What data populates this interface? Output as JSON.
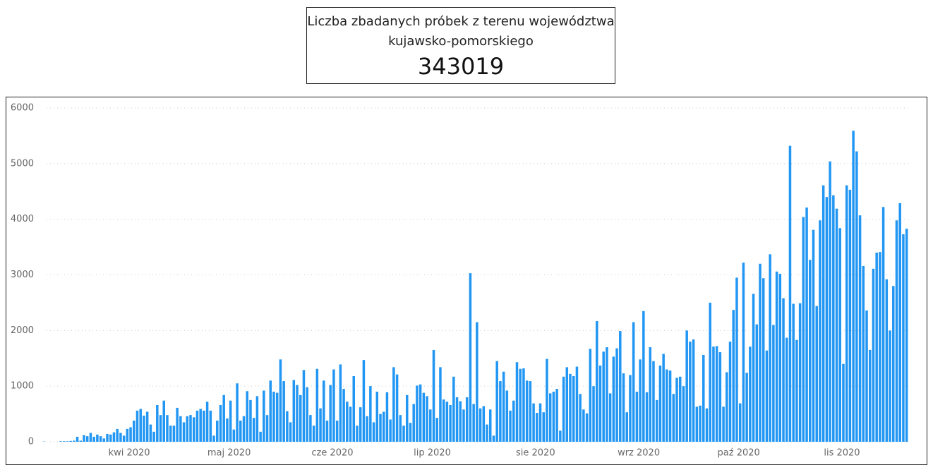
{
  "card": {
    "title": "Liczba zbadanych próbek z terenu województwa kujawsko-pomorskiego",
    "value": 343019
  },
  "chart_data": {
    "type": "bar",
    "color": "#2196f3",
    "grid": true,
    "ylim": [
      0,
      6000
    ],
    "yticks": [
      0,
      1000,
      2000,
      3000,
      4000,
      5000,
      6000
    ],
    "categories": [
      null,
      null,
      null,
      null,
      null,
      null,
      null,
      null,
      null,
      null,
      null,
      null,
      null,
      null,
      null,
      null,
      null,
      null,
      null,
      null,
      null,
      null,
      null,
      null,
      null,
      null,
      "kwi 2020",
      null,
      null,
      null,
      null,
      null,
      null,
      null,
      null,
      null,
      null,
      null,
      null,
      null,
      null,
      null,
      null,
      null,
      null,
      null,
      null,
      null,
      null,
      null,
      null,
      null,
      null,
      null,
      null,
      null,
      "maj 2020",
      null,
      null,
      null,
      null,
      null,
      null,
      null,
      null,
      null,
      null,
      null,
      null,
      null,
      null,
      null,
      null,
      null,
      null,
      null,
      null,
      null,
      null,
      null,
      null,
      null,
      null,
      null,
      null,
      null,
      null,
      "cze 2020",
      null,
      null,
      null,
      null,
      null,
      null,
      null,
      null,
      null,
      null,
      null,
      null,
      null,
      null,
      null,
      null,
      null,
      null,
      null,
      null,
      null,
      null,
      null,
      null,
      null,
      null,
      null,
      null,
      null,
      "lip 2020",
      null,
      null,
      null,
      null,
      null,
      null,
      null,
      null,
      null,
      null,
      null,
      null,
      null,
      null,
      null,
      null,
      null,
      null,
      null,
      null,
      null,
      null,
      null,
      null,
      null,
      null,
      null,
      null,
      null,
      null,
      "sie 2020",
      null,
      null,
      null,
      null,
      null,
      null,
      null,
      null,
      null,
      null,
      null,
      null,
      null,
      null,
      null,
      null,
      null,
      null,
      null,
      null,
      null,
      null,
      null,
      null,
      null,
      null,
      null,
      null,
      null,
      null,
      "wrz 2020",
      null,
      null,
      null,
      null,
      null,
      null,
      null,
      null,
      null,
      null,
      null,
      null,
      null,
      null,
      null,
      null,
      null,
      null,
      null,
      null,
      null,
      null,
      null,
      null,
      null,
      null,
      null,
      null,
      null,
      "paź 2020",
      null,
      null,
      null,
      null,
      null,
      null,
      null,
      null,
      null,
      null,
      null,
      null,
      null,
      null,
      null,
      null,
      null,
      null,
      null,
      null,
      null,
      null,
      null,
      null,
      null,
      null,
      null,
      null,
      null,
      null,
      "lis 2020",
      null,
      null,
      null,
      null,
      null,
      null,
      null,
      null,
      null,
      null,
      null,
      null,
      null,
      null,
      null,
      null,
      null,
      null,
      null
    ],
    "values": [
      5,
      0,
      0,
      0,
      0,
      10,
      10,
      10,
      15,
      20,
      90,
      20,
      120,
      100,
      160,
      90,
      130,
      100,
      60,
      140,
      130,
      170,
      230,
      160,
      110,
      230,
      260,
      380,
      560,
      590,
      470,
      540,
      310,
      180,
      660,
      480,
      740,
      480,
      290,
      290,
      610,
      460,
      350,
      460,
      480,
      440,
      560,
      590,
      560,
      720,
      560,
      110,
      380,
      660,
      840,
      420,
      740,
      220,
      1050,
      380,
      460,
      910,
      750,
      430,
      820,
      180,
      920,
      480,
      1100,
      900,
      880,
      1480,
      1090,
      550,
      350,
      1110,
      1020,
      840,
      1290,
      980,
      480,
      290,
      1310,
      600,
      1100,
      380,
      1020,
      1300,
      380,
      1390,
      950,
      720,
      630,
      1180,
      290,
      620,
      1470,
      460,
      1000,
      350,
      900,
      500,
      540,
      890,
      400,
      1340,
      1210,
      480,
      290,
      840,
      340,
      680,
      1010,
      1030,
      880,
      820,
      580,
      1650,
      430,
      1340,
      760,
      720,
      660,
      1170,
      800,
      730,
      580,
      800,
      3030,
      680,
      2150,
      600,
      640,
      310,
      580,
      110,
      1450,
      1090,
      1260,
      920,
      560,
      740,
      1430,
      1310,
      1320,
      1100,
      1090,
      690,
      520,
      690,
      530,
      1490,
      870,
      900,
      950,
      200,
      1170,
      1340,
      1220,
      1180,
      1350,
      860,
      580,
      510,
      1670,
      1000,
      2170,
      1370,
      1620,
      1700,
      870,
      1530,
      1680,
      1990,
      1230,
      530,
      1200,
      2150,
      900,
      1480,
      2350,
      890,
      1700,
      1450,
      750,
      1370,
      1580,
      1300,
      1280,
      860,
      1150,
      1170,
      1000,
      2000,
      1800,
      1840,
      630,
      650,
      1560,
      600,
      2500,
      1710,
      1720,
      1610,
      630,
      1250,
      1800,
      2370,
      2950,
      690,
      3220,
      1240,
      1710,
      2660,
      2110,
      3200,
      2940,
      1640,
      3370,
      2100,
      3060,
      3020,
      2580,
      1870,
      5320,
      2480,
      1830,
      2490,
      4040,
      4210,
      3270,
      3810,
      2440,
      3980,
      4610,
      4400,
      5040,
      4430,
      4190,
      3840,
      1400,
      4610,
      4530,
      5590,
      5220,
      4070,
      3160,
      2360,
      1650,
      3110,
      3400,
      3410,
      4220,
      2920,
      2000,
      2800,
      3980,
      4290,
      3730,
      3830
    ]
  }
}
